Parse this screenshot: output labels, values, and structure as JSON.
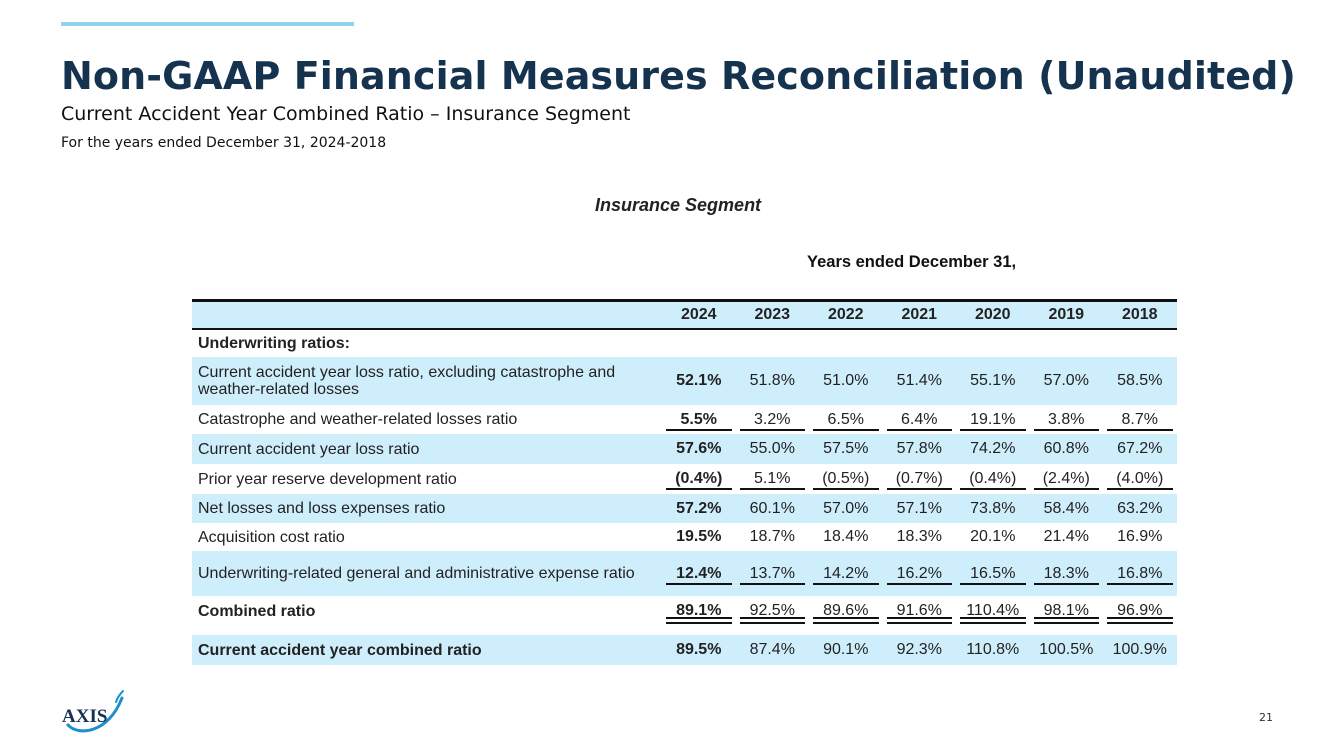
{
  "slide": {
    "title": "Non-GAAP Financial Measures Reconciliation (Unaudited)",
    "subtitle": "Current Accident Year Combined Ratio – Insurance Segment",
    "period": "For the years ended December 31, 2024-2018",
    "page_number": "21",
    "logo_text": "AXIS",
    "accent_color": "#8fd3ea",
    "title_color": "#15324f"
  },
  "table": {
    "segment_title": "Insurance Segment",
    "years_heading": "Years ended December 31,",
    "years": [
      "2024",
      "2023",
      "2022",
      "2021",
      "2020",
      "2019",
      "2018"
    ],
    "section_label": "Underwriting ratios:",
    "rows": [
      {
        "label": "Current accident year loss ratio, excluding catastrophe and weather-related losses",
        "values": [
          "52.1%",
          "51.8%",
          "51.0%",
          "51.4%",
          "55.1%",
          "57.0%",
          "58.5%"
        ]
      },
      {
        "label": "Catastrophe and weather-related losses ratio",
        "values": [
          "5.5%",
          "3.2%",
          "6.5%",
          "6.4%",
          "19.1%",
          "3.8%",
          "8.7%"
        ]
      },
      {
        "label": "Current accident year loss ratio",
        "values": [
          "57.6%",
          "55.0%",
          "57.5%",
          "57.8%",
          "74.2%",
          "60.8%",
          "67.2%"
        ]
      },
      {
        "label": "Prior year reserve development ratio",
        "values": [
          "(0.4%)",
          "5.1%",
          "(0.5%)",
          "(0.7%)",
          "(0.4%)",
          "(2.4%)",
          "(4.0%)"
        ]
      },
      {
        "label": "Net losses and loss expenses ratio",
        "values": [
          "57.2%",
          "60.1%",
          "57.0%",
          "57.1%",
          "73.8%",
          "58.4%",
          "63.2%"
        ]
      },
      {
        "label": "Acquisition cost ratio",
        "values": [
          "19.5%",
          "18.7%",
          "18.4%",
          "18.3%",
          "20.1%",
          "21.4%",
          "16.9%"
        ]
      },
      {
        "label": "Underwriting-related general and administrative expense ratio",
        "values": [
          "12.4%",
          "13.7%",
          "14.2%",
          "16.2%",
          "16.5%",
          "18.3%",
          "16.8%"
        ]
      },
      {
        "label": "Combined ratio",
        "values": [
          "89.1%",
          "92.5%",
          "89.6%",
          "91.6%",
          "110.4%",
          "98.1%",
          "96.9%"
        ]
      },
      {
        "label": "Current accident year combined ratio",
        "values": [
          "89.5%",
          "87.4%",
          "90.1%",
          "92.3%",
          "110.8%",
          "100.5%",
          "100.9%"
        ]
      }
    ]
  }
}
